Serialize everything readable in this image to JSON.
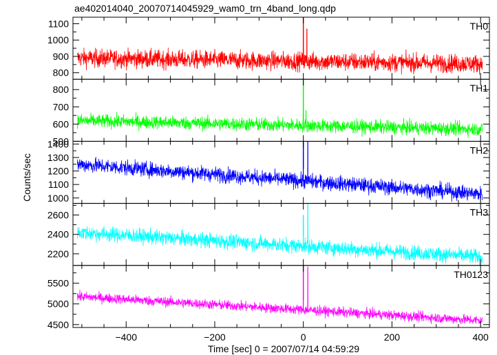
{
  "title": "ae402014040_20070714045929_wam0_trn_4band_long.qdp",
  "xlabel": "Time [sec] 0 = 2007/07/14 04:59:29",
  "ylabel": "Counts/sec",
  "chart_data": {
    "type": "line",
    "shared_x": {
      "range": [
        -520,
        420
      ],
      "ticks": [
        -400,
        -200,
        0,
        200,
        400
      ],
      "tick_labels": [
        "−400",
        "−200",
        "0",
        "200",
        "400"
      ]
    },
    "panels": [
      {
        "name": "TH0",
        "color": "#ff0000",
        "ylim": [
          760,
          1140
        ],
        "yticks": [
          800,
          900,
          1000,
          1100
        ],
        "yticks_minor": [
          850,
          950,
          1050
        ],
        "trend": {
          "x": [
            -510,
            400
          ],
          "y": [
            890,
            855
          ]
        },
        "noise_amplitude": 40,
        "spike": {
          "x": 0,
          "y": 1140
        },
        "spike2": {
          "x": 8,
          "y": 1070
        }
      },
      {
        "name": "TH1",
        "color": "#00ff00",
        "ylim": [
          500,
          860
        ],
        "yticks": [
          500,
          600,
          700,
          800
        ],
        "yticks_minor": [
          550,
          650,
          750
        ],
        "trend": {
          "x": [
            -510,
            400
          ],
          "y": [
            620,
            570
          ]
        },
        "noise_amplitude": 28,
        "spike": {
          "x": 0,
          "y": 860
        },
        "spike2": {
          "x": 6,
          "y": 680
        }
      },
      {
        "name": "TH2",
        "color": "#0000ff",
        "ylim": [
          960,
          1420
        ],
        "yticks": [
          1000,
          1100,
          1200,
          1300,
          1400
        ],
        "yticks_minor": [
          1050,
          1150,
          1250,
          1350
        ],
        "trend": {
          "x": [
            -510,
            400
          ],
          "y": [
            1250,
            1030
          ]
        },
        "noise_amplitude": 40,
        "spike": {
          "x": 0,
          "y": 1420
        },
        "spike2": {
          "x": 10,
          "y": 1420
        }
      },
      {
        "name": "TH3",
        "color": "#00ffff",
        "ylim": [
          2080,
          2720
        ],
        "yticks": [
          2200,
          2400,
          2600
        ],
        "yticks_minor": [
          2300,
          2500,
          2700
        ],
        "trend": {
          "x": [
            -510,
            400
          ],
          "y": [
            2420,
            2170
          ]
        },
        "noise_amplitude": 55,
        "spike": {
          "x": 0,
          "y": 2600
        },
        "spike2": {
          "x": 10,
          "y": 2720
        }
      },
      {
        "name": "TH0123",
        "color": "#ff00ff",
        "ylim": [
          4430,
          5930
        ],
        "yticks": [
          4500,
          5000,
          5500
        ],
        "yticks_minor": [
          4750,
          5250,
          5750
        ],
        "trend": {
          "x": [
            -510,
            400
          ],
          "y": [
            5180,
            4600
          ]
        },
        "noise_amplitude": 85,
        "spike": {
          "x": 0,
          "y": 5930
        },
        "spike2": {
          "x": 10,
          "y": 5900
        }
      }
    ]
  }
}
